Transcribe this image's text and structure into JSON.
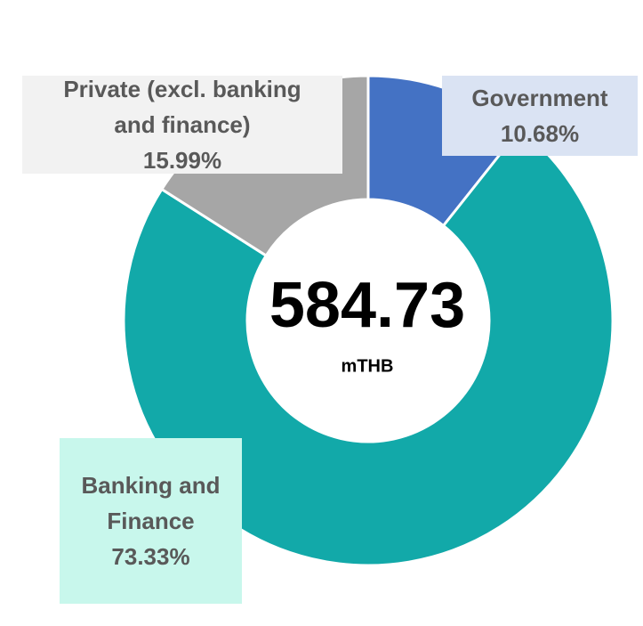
{
  "chart_data": {
    "type": "donut",
    "categories": [
      "Government",
      "Banking and Finance",
      "Private (excl. banking and finance)"
    ],
    "values": [
      10.68,
      73.33,
      15.99
    ],
    "value_labels": [
      "10.68%",
      "73.33%",
      "15.99%"
    ],
    "colors": [
      "#4472c4",
      "#12a9a9",
      "#a6a6a6"
    ],
    "center_value": "584.73",
    "center_unit": "mTHB"
  }
}
